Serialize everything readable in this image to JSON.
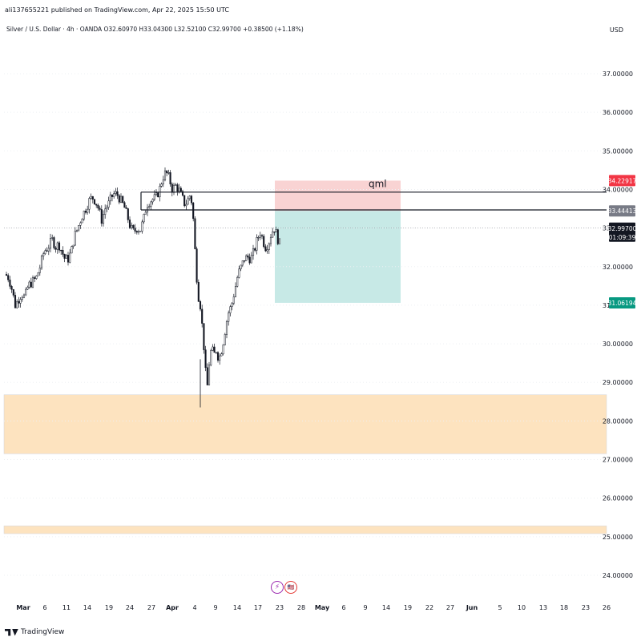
{
  "header": {
    "published": "ali137655221 published on TradingView.com, Apr 22, 2025 15:50 UTC"
  },
  "legend": {
    "text": "Silver / U.S. Dollar · 4h · OANDA  O32.60970  H33.04300  L32.52100  C32.99700  +0.38500 (+1.18%)"
  },
  "currency": "USD",
  "footer": {
    "brand": "TradingView"
  },
  "colors": {
    "up": "#131722",
    "down": "#131722",
    "stop_zone": "#f8c8c8",
    "target_zone": "#b9e4e0",
    "demand_zone": "#fde3bf",
    "price_tag_red": "#f23645",
    "price_tag_teal": "#089981",
    "price_tag_gray": "#787b86"
  },
  "chart_data": {
    "type": "candlestick",
    "symbol": "Silver / U.S. Dollar",
    "interval": "4h",
    "exchange": "OANDA",
    "ylim": [
      23.4,
      38.2
    ],
    "y_ticks": [
      "37.00000",
      "36.00000",
      "35.00000",
      "34.00000",
      "33.00000",
      "32.00000",
      "31.00000",
      "30.00000",
      "29.00000",
      "28.00000",
      "27.00000",
      "26.00000",
      "25.00000",
      "24.00000"
    ],
    "x_ticks": [
      "Mar",
      "6",
      "11",
      "14",
      "19",
      "24",
      "27",
      "Apr",
      "4",
      "9",
      "14",
      "17",
      "23",
      "28",
      "May",
      "6",
      "9",
      "14",
      "19",
      "22",
      "27",
      "Jun",
      "5",
      "10",
      "13",
      "18",
      "23",
      "26"
    ],
    "annotation_text": "qml",
    "price_labels": {
      "stop": "34.22917",
      "level": "33.44413",
      "current": "32.99700",
      "countdown": "01:09:39",
      "target": "31.06194"
    },
    "levels": {
      "black_line_upper": 33.93,
      "black_line_lower": 33.47,
      "current": 32.997,
      "position_entry": 33.44413,
      "position_stop": 34.22917,
      "position_target": 31.06194,
      "demand_zone_upper": [
        27.15,
        28.68
      ],
      "demand_zone_lower": [
        25.08,
        25.28
      ]
    },
    "candle_path": [
      {
        "t": 0,
        "v": 31.8
      },
      {
        "t": 4,
        "v": 31.7
      },
      {
        "t": 8,
        "v": 31.4
      },
      {
        "t": 12,
        "v": 31.0
      },
      {
        "t": 16,
        "v": 31.15
      },
      {
        "t": 20,
        "v": 31.3
      },
      {
        "t": 24,
        "v": 31.2
      },
      {
        "t": 28,
        "v": 31.5
      },
      {
        "t": 33,
        "v": 31.6
      },
      {
        "t": 38,
        "v": 31.7
      },
      {
        "t": 43,
        "v": 32.0
      },
      {
        "t": 48,
        "v": 32.4
      },
      {
        "t": 53,
        "v": 32.5
      },
      {
        "t": 58,
        "v": 32.7
      },
      {
        "t": 63,
        "v": 32.5
      },
      {
        "t": 66,
        "v": 32.6
      },
      {
        "t": 70,
        "v": 32.4
      },
      {
        "t": 74,
        "v": 32.2
      },
      {
        "t": 78,
        "v": 32.2
      },
      {
        "t": 82,
        "v": 32.4
      },
      {
        "t": 86,
        "v": 32.8
      },
      {
        "t": 90,
        "v": 33.0
      },
      {
        "t": 95,
        "v": 33.3
      },
      {
        "t": 100,
        "v": 33.5
      },
      {
        "t": 104,
        "v": 33.7
      },
      {
        "t": 108,
        "v": 33.8
      },
      {
        "t": 112,
        "v": 33.7
      },
      {
        "t": 116,
        "v": 33.5
      },
      {
        "t": 120,
        "v": 33.2
      },
      {
        "t": 124,
        "v": 33.5
      },
      {
        "t": 128,
        "v": 33.6
      },
      {
        "t": 132,
        "v": 33.8
      },
      {
        "t": 136,
        "v": 33.9
      },
      {
        "t": 140,
        "v": 33.85
      },
      {
        "t": 144,
        "v": 33.7
      },
      {
        "t": 148,
        "v": 33.55
      },
      {
        "t": 152,
        "v": 33.3
      },
      {
        "t": 156,
        "v": 33.0
      },
      {
        "t": 160,
        "v": 32.9
      },
      {
        "t": 164,
        "v": 33.0
      },
      {
        "t": 168,
        "v": 32.95
      },
      {
        "t": 172,
        "v": 33.2
      },
      {
        "t": 176,
        "v": 33.6
      },
      {
        "t": 180,
        "v": 33.7
      },
      {
        "t": 184,
        "v": 33.75
      },
      {
        "t": 188,
        "v": 33.8
      },
      {
        "t": 192,
        "v": 34.0
      },
      {
        "t": 196,
        "v": 34.3
      },
      {
        "t": 200,
        "v": 34.45
      },
      {
        "t": 204,
        "v": 34.3
      },
      {
        "t": 208,
        "v": 34.0
      },
      {
        "t": 212,
        "v": 34.1
      },
      {
        "t": 216,
        "v": 34.0
      },
      {
        "t": 220,
        "v": 33.8
      },
      {
        "t": 224,
        "v": 33.6
      },
      {
        "t": 228,
        "v": 33.75
      },
      {
        "t": 231,
        "v": 33.9
      },
      {
        "t": 234,
        "v": 33.3
      },
      {
        "t": 237,
        "v": 32.2
      },
      {
        "t": 240,
        "v": 31.3
      },
      {
        "t": 243,
        "v": 31.0
      },
      {
        "t": 246,
        "v": 30.3
      },
      {
        "t": 249,
        "v": 29.5
      },
      {
        "t": 251,
        "v": 28.7
      },
      {
        "t": 254,
        "v": 29.5
      },
      {
        "t": 257,
        "v": 29.9
      },
      {
        "t": 260,
        "v": 29.7
      },
      {
        "t": 263,
        "v": 29.85
      },
      {
        "t": 266,
        "v": 29.6
      },
      {
        "t": 269,
        "v": 29.8
      },
      {
        "t": 272,
        "v": 30.1
      },
      {
        "t": 275,
        "v": 30.5
      },
      {
        "t": 278,
        "v": 30.8
      },
      {
        "t": 282,
        "v": 31.0
      },
      {
        "t": 286,
        "v": 31.4
      },
      {
        "t": 290,
        "v": 31.8
      },
      {
        "t": 294,
        "v": 32.0
      },
      {
        "t": 298,
        "v": 32.2
      },
      {
        "t": 302,
        "v": 32.25
      },
      {
        "t": 306,
        "v": 32.2
      },
      {
        "t": 310,
        "v": 32.4
      },
      {
        "t": 314,
        "v": 32.7
      },
      {
        "t": 318,
        "v": 32.9
      },
      {
        "t": 321,
        "v": 32.7
      },
      {
        "t": 324,
        "v": 32.5
      },
      {
        "t": 328,
        "v": 32.6
      },
      {
        "t": 332,
        "v": 32.9
      },
      {
        "t": 336,
        "v": 33.0
      },
      {
        "t": 339,
        "v": 32.75
      },
      {
        "t": 342,
        "v": 32.6
      },
      {
        "t": 344,
        "v": 33.0
      }
    ]
  }
}
